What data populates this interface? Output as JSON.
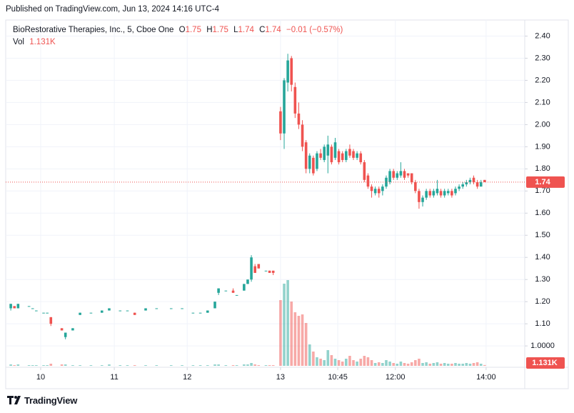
{
  "header": {
    "published": "Published on TradingView.com, Jun 13, 2024 14:16 UTC-4"
  },
  "footer": {
    "brand": "TradingView"
  },
  "chart_data": {
    "type": "candlestick",
    "title": "BioRestorative Therapies, Inc., 5, Cboe One",
    "ohlc_labels": [
      "O",
      "H",
      "L",
      "C"
    ],
    "change_label": "−0.01 (−0.57%)",
    "x": [
      1,
      2,
      3,
      6,
      7,
      8,
      10,
      11,
      12,
      15,
      16,
      18,
      20,
      23,
      26,
      28,
      31,
      33,
      35,
      38,
      41,
      45,
      48,
      51,
      53,
      55,
      57,
      58,
      60,
      62,
      63,
      65,
      66,
      67,
      68,
      69,
      71,
      72,
      73,
      75,
      76,
      77,
      78,
      79,
      80,
      81,
      82,
      83,
      84,
      85,
      86,
      87,
      88,
      89,
      90,
      91,
      92,
      93,
      94,
      95,
      96,
      97,
      98,
      99,
      100,
      101,
      102,
      103,
      104,
      105,
      106,
      107,
      108,
      109,
      110,
      111,
      112,
      113,
      114,
      115,
      116,
      117,
      118,
      119,
      120,
      121,
      122,
      123,
      124,
      125,
      126,
      127,
      128,
      129,
      130,
      131
    ],
    "open": [
      1.17,
      1.18,
      1.17,
      1.18,
      1.17,
      1.16,
      1.15,
      1.15,
      1.13,
      1.08,
      1.04,
      1.07,
      1.14,
      1.15,
      1.15,
      1.16,
      1.16,
      1.16,
      1.15,
      1.16,
      1.17,
      1.17,
      1.17,
      1.15,
      1.15,
      1.15,
      1.17,
      1.24,
      1.25,
      1.25,
      1.23,
      1.25,
      1.28,
      1.3,
      1.36,
      1.37,
      1.34,
      1.34,
      1.34,
      2.06,
      1.96,
      2.19,
      2.3,
      2.17,
      2.05,
      2.0,
      1.92,
      1.8,
      1.85,
      1.8,
      1.87,
      1.84,
      1.86,
      1.9,
      1.85,
      1.88,
      1.87,
      1.84,
      1.89,
      1.88,
      1.85,
      1.87,
      1.83,
      1.77,
      1.72,
      1.69,
      1.71,
      1.7,
      1.72,
      1.74,
      1.79,
      1.76,
      1.77,
      1.79,
      1.78,
      1.78,
      1.74,
      1.7,
      1.65,
      1.67,
      1.7,
      1.68,
      1.69,
      1.7,
      1.68,
      1.69,
      1.7,
      1.69,
      1.71,
      1.72,
      1.73,
      1.74,
      1.76,
      1.74,
      1.72,
      1.75
    ],
    "high": [
      1.19,
      1.18,
      1.19,
      1.18,
      1.17,
      1.16,
      1.15,
      1.15,
      1.13,
      1.08,
      1.06,
      1.08,
      1.15,
      1.15,
      1.16,
      1.17,
      1.16,
      1.16,
      1.15,
      1.17,
      1.17,
      1.17,
      1.17,
      1.15,
      1.15,
      1.16,
      1.2,
      1.26,
      1.25,
      1.26,
      1.23,
      1.28,
      1.3,
      1.41,
      1.37,
      1.37,
      1.34,
      1.34,
      1.34,
      2.08,
      2.21,
      2.32,
      2.31,
      2.19,
      2.1,
      2.02,
      1.93,
      1.87,
      1.86,
      1.88,
      1.89,
      1.91,
      1.95,
      1.91,
      1.94,
      1.89,
      1.88,
      1.89,
      1.91,
      1.89,
      1.88,
      1.88,
      1.84,
      1.78,
      1.73,
      1.72,
      1.72,
      1.73,
      1.77,
      1.8,
      1.8,
      1.79,
      1.83,
      1.8,
      1.78,
      1.78,
      1.75,
      1.71,
      1.68,
      1.71,
      1.71,
      1.71,
      1.75,
      1.71,
      1.71,
      1.71,
      1.71,
      1.72,
      1.73,
      1.74,
      1.75,
      1.76,
      1.77,
      1.75,
      1.75,
      1.75
    ],
    "low": [
      1.16,
      1.17,
      1.17,
      1.18,
      1.17,
      1.16,
      1.15,
      1.15,
      1.09,
      1.07,
      1.03,
      1.07,
      1.14,
      1.15,
      1.15,
      1.16,
      1.16,
      1.16,
      1.14,
      1.16,
      1.17,
      1.17,
      1.17,
      1.15,
      1.15,
      1.15,
      1.17,
      1.23,
      1.25,
      1.24,
      1.23,
      1.25,
      1.28,
      1.29,
      1.33,
      1.35,
      1.34,
      1.33,
      1.32,
      1.93,
      1.89,
      2.15,
      2.15,
      2.03,
      1.98,
      1.88,
      1.78,
      1.78,
      1.77,
      1.79,
      1.84,
      1.83,
      1.78,
      1.82,
      1.84,
      1.82,
      1.83,
      1.83,
      1.85,
      1.84,
      1.84,
      1.82,
      1.74,
      1.71,
      1.67,
      1.68,
      1.67,
      1.68,
      1.71,
      1.73,
      1.75,
      1.75,
      1.76,
      1.75,
      1.76,
      1.73,
      1.69,
      1.62,
      1.63,
      1.66,
      1.67,
      1.67,
      1.68,
      1.67,
      1.67,
      1.68,
      1.67,
      1.68,
      1.7,
      1.71,
      1.72,
      1.73,
      1.73,
      1.71,
      1.72,
      1.74
    ],
    "close": [
      1.19,
      1.17,
      1.19,
      1.18,
      1.17,
      1.16,
      1.15,
      1.15,
      1.1,
      1.07,
      1.06,
      1.08,
      1.15,
      1.15,
      1.16,
      1.17,
      1.16,
      1.16,
      1.14,
      1.17,
      1.17,
      1.17,
      1.17,
      1.15,
      1.15,
      1.16,
      1.2,
      1.26,
      1.25,
      1.24,
      1.23,
      1.28,
      1.3,
      1.4,
      1.33,
      1.35,
      1.34,
      1.33,
      1.33,
      1.96,
      2.2,
      2.29,
      2.18,
      2.05,
      2.0,
      1.9,
      1.8,
      1.86,
      1.78,
      1.87,
      1.85,
      1.9,
      1.91,
      1.83,
      1.92,
      1.83,
      1.84,
      1.88,
      1.86,
      1.85,
      1.87,
      1.83,
      1.75,
      1.72,
      1.7,
      1.71,
      1.69,
      1.72,
      1.76,
      1.79,
      1.76,
      1.78,
      1.79,
      1.76,
      1.77,
      1.74,
      1.7,
      1.65,
      1.67,
      1.7,
      1.68,
      1.7,
      1.71,
      1.68,
      1.7,
      1.7,
      1.68,
      1.71,
      1.72,
      1.73,
      1.74,
      1.75,
      1.74,
      1.72,
      1.74,
      1.74
    ],
    "up_color": "#26a69a",
    "down_color": "#ef5350",
    "volume": {
      "name": "Vol",
      "values": [
        2000,
        1000,
        2000,
        1000,
        1000,
        1000,
        1000,
        1000,
        3000,
        2000,
        2000,
        1000,
        1000,
        1000,
        1000,
        2000,
        1000,
        1000,
        1000,
        1000,
        1000,
        1000,
        1000,
        1000,
        1000,
        1000,
        2000,
        2000,
        1000,
        1000,
        1000,
        2000,
        2000,
        4000,
        2000,
        1000,
        1000,
        1000,
        1000,
        92000,
        115000,
        120000,
        90000,
        75000,
        70000,
        72000,
        60000,
        30000,
        20000,
        12000,
        10000,
        8000,
        22000,
        15000,
        10000,
        8000,
        6000,
        10000,
        14000,
        8000,
        6000,
        10000,
        14000,
        12000,
        8000,
        4000,
        5000,
        4000,
        8000,
        6000,
        4000,
        3000,
        6000,
        4000,
        3000,
        5000,
        8000,
        10000,
        4000,
        5000,
        3000,
        4000,
        5000,
        3000,
        4000,
        3000,
        3000,
        4000,
        3000,
        3000,
        4000,
        3000,
        4000,
        5000,
        3000,
        1131
      ],
      "value_labels": [
        null,
        null,
        null,
        null,
        null,
        null,
        null,
        null,
        null,
        null,
        null,
        null,
        null,
        null,
        null,
        null,
        null,
        null,
        null,
        null,
        null,
        null,
        null,
        null,
        null,
        null,
        null,
        null,
        null,
        null,
        null,
        null,
        null,
        null,
        null,
        null,
        null,
        null,
        null,
        null,
        null,
        null,
        null,
        null,
        null,
        null,
        null,
        null,
        null,
        null,
        null,
        null,
        null,
        null,
        null,
        null,
        null,
        null,
        null,
        null,
        null,
        null,
        null,
        null,
        null,
        null,
        null,
        null,
        null,
        null,
        null,
        null,
        null,
        null,
        null,
        null,
        null,
        null,
        null,
        null,
        null,
        null,
        null,
        null,
        null,
        null,
        null,
        null,
        null,
        null,
        null,
        null,
        null,
        null,
        null,
        "1.131K"
      ],
      "ylim": [
        0,
        140000
      ]
    },
    "xlim": [
      0,
      142
    ],
    "xticks": [
      {
        "value": 9.2,
        "label": "10"
      },
      {
        "value": 29.4,
        "label": "11"
      },
      {
        "value": 49.4,
        "label": "12"
      },
      {
        "value": 75,
        "label": "13"
      },
      {
        "value": 90.7,
        "label": "10:45"
      },
      {
        "value": 106.5,
        "label": "12:00"
      },
      {
        "value": 131.4,
        "label": "14:00"
      }
    ],
    "ylim": [
      0.91,
      2.45
    ],
    "yticks": [
      {
        "value": 1,
        "label": "1.0000"
      },
      {
        "value": 1.1,
        "label": "1.10"
      },
      {
        "value": 1.2,
        "label": "1.20"
      },
      {
        "value": 1.3,
        "label": "1.30"
      },
      {
        "value": 1.4,
        "label": "1.40"
      },
      {
        "value": 1.5,
        "label": "1.50"
      },
      {
        "value": 1.6,
        "label": "1.60"
      },
      {
        "value": 1.7,
        "label": "1.70"
      },
      {
        "value": 1.8,
        "label": "1.80"
      },
      {
        "value": 1.9,
        "label": "1.90"
      },
      {
        "value": 2,
        "label": "2.00"
      },
      {
        "value": 2.1,
        "label": "2.10"
      },
      {
        "value": 2.2,
        "label": "2.20"
      },
      {
        "value": 2.3,
        "label": "2.30"
      },
      {
        "value": 2.4,
        "label": "2.40"
      }
    ],
    "grid": true,
    "price_line": true
  }
}
